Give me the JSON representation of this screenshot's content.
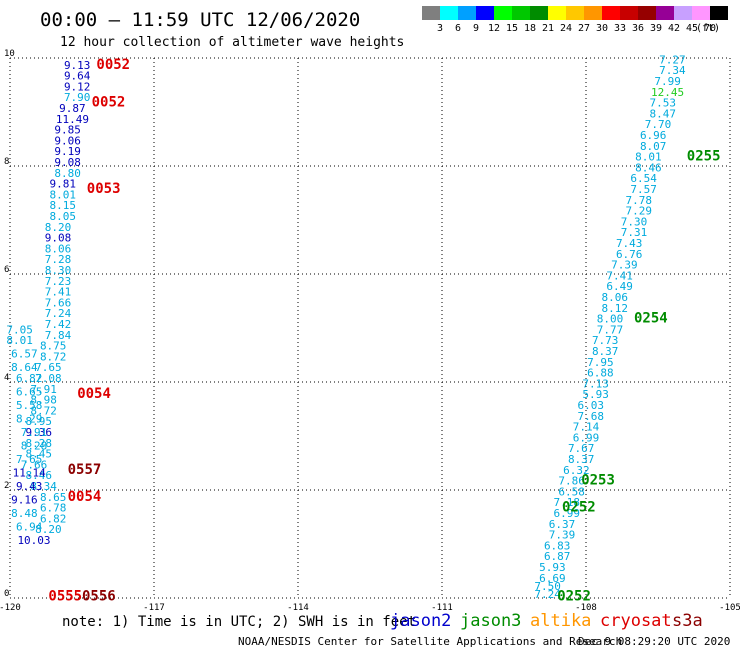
{
  "header": {
    "title": "00:00 – 11:59 UTC 12/06/2020",
    "subtitle": "12 hour collection of altimeter wave heights"
  },
  "legend": {
    "unit": "(ft)",
    "bins": [
      {
        "label": "3",
        "color": "#7f7f7f"
      },
      {
        "label": "6",
        "color": "#00ffff"
      },
      {
        "label": "9",
        "color": "#00a0ff"
      },
      {
        "label": "12",
        "color": "#0000ff"
      },
      {
        "label": "15",
        "color": "#00ff00"
      },
      {
        "label": "18",
        "color": "#00c800"
      },
      {
        "label": "21",
        "color": "#008c00"
      },
      {
        "label": "24",
        "color": "#ffff00"
      },
      {
        "label": "27",
        "color": "#ffc800"
      },
      {
        "label": "30",
        "color": "#ff9600"
      },
      {
        "label": "33",
        "color": "#ff0000"
      },
      {
        "label": "36",
        "color": "#c80000"
      },
      {
        "label": "39",
        "color": "#960000"
      },
      {
        "label": "42",
        "color": "#960096"
      },
      {
        "label": "45",
        "color": "#c8a0ff"
      },
      {
        "label": "70",
        "color": "#ff96ff"
      },
      {
        "label": "",
        "color": "#000000"
      }
    ]
  },
  "footer": {
    "note": "note:  1) Time is in UTC; 2) SWH is in feet",
    "credit": "NOAA/NESDIS Center for Satellite Applications and Research",
    "timestamp": "Dec  9 08:29:20 UTC 2020",
    "satellites": [
      {
        "name": "jason2",
        "color": "#0000cc"
      },
      {
        "name": "jason3",
        "color": "#008c00"
      },
      {
        "name": "altika",
        "color": "#ff9600"
      },
      {
        "name": "cryosat",
        "color": "#dd0000"
      },
      {
        "name": "s3a",
        "color": "#8b0000"
      }
    ]
  },
  "chart_data": {
    "type": "scatter",
    "xlim": [
      -120,
      -105
    ],
    "ylim": [
      0,
      10
    ],
    "grid": true,
    "x_ticks": [
      "-120",
      "-117",
      "-114",
      "-111",
      "-108",
      "-105"
    ],
    "y_ticks": [
      "0",
      "2",
      "4",
      "6",
      "8",
      "10"
    ],
    "colors": {
      "c3": "#00aadd",
      "c4": "#0000bb",
      "c5": "#22cc22",
      "p_red": "#dd0000",
      "p_green": "#008c00",
      "p_maroon": "#8b0000"
    },
    "points": [
      {
        "x": -118.6,
        "y": 9.8,
        "v": "9.13",
        "c": "c4"
      },
      {
        "x": -118.6,
        "y": 9.6,
        "v": "9.64",
        "c": "c4"
      },
      {
        "x": -118.6,
        "y": 9.4,
        "v": "9.12",
        "c": "c4"
      },
      {
        "x": -118.6,
        "y": 9.2,
        "v": "7.90",
        "c": "c3"
      },
      {
        "x": -118.7,
        "y": 9.0,
        "v": "9.87",
        "c": "c4"
      },
      {
        "x": -118.7,
        "y": 8.8,
        "v": "11.49",
        "c": "c4"
      },
      {
        "x": -118.8,
        "y": 8.6,
        "v": "9.85",
        "c": "c4"
      },
      {
        "x": -118.8,
        "y": 8.4,
        "v": "9.06",
        "c": "c4"
      },
      {
        "x": -118.8,
        "y": 8.2,
        "v": "9.19",
        "c": "c4"
      },
      {
        "x": -118.8,
        "y": 8.0,
        "v": "9.08",
        "c": "c4"
      },
      {
        "x": -118.8,
        "y": 7.8,
        "v": "8.80",
        "c": "c3"
      },
      {
        "x": -118.9,
        "y": 7.6,
        "v": "9.81",
        "c": "c4"
      },
      {
        "x": -118.9,
        "y": 7.4,
        "v": "8.01",
        "c": "c3"
      },
      {
        "x": -118.9,
        "y": 7.2,
        "v": "8.15",
        "c": "c3"
      },
      {
        "x": -118.9,
        "y": 7.0,
        "v": "8.05",
        "c": "c3"
      },
      {
        "x": -119.0,
        "y": 6.8,
        "v": "8.20",
        "c": "c3"
      },
      {
        "x": -119.0,
        "y": 6.6,
        "v": "9.08",
        "c": "c4"
      },
      {
        "x": -119.0,
        "y": 6.4,
        "v": "8.06",
        "c": "c3"
      },
      {
        "x": -119.0,
        "y": 6.2,
        "v": "7.28",
        "c": "c3"
      },
      {
        "x": -119.0,
        "y": 6.0,
        "v": "8.30",
        "c": "c3"
      },
      {
        "x": -119.0,
        "y": 5.8,
        "v": "7.23",
        "c": "c3"
      },
      {
        "x": -119.0,
        "y": 5.6,
        "v": "7.41",
        "c": "c3"
      },
      {
        "x": -119.0,
        "y": 5.4,
        "v": "7.66",
        "c": "c3"
      },
      {
        "x": -119.0,
        "y": 5.2,
        "v": "7.24",
        "c": "c3"
      },
      {
        "x": -119.0,
        "y": 5.0,
        "v": "7.42",
        "c": "c3"
      },
      {
        "x": -119.0,
        "y": 4.8,
        "v": "7.84",
        "c": "c3"
      },
      {
        "x": -119.1,
        "y": 4.6,
        "v": "8.75",
        "c": "c3"
      },
      {
        "x": -119.1,
        "y": 4.4,
        "v": "8.72",
        "c": "c3"
      },
      {
        "x": -119.2,
        "y": 4.2,
        "v": "7.65",
        "c": "c3"
      },
      {
        "x": -119.2,
        "y": 4.0,
        "v": "7.08",
        "c": "c3"
      },
      {
        "x": -119.3,
        "y": 3.8,
        "v": "7.91",
        "c": "c3"
      },
      {
        "x": -119.3,
        "y": 3.6,
        "v": "8.98",
        "c": "c3"
      },
      {
        "x": -119.3,
        "y": 3.4,
        "v": "8.72",
        "c": "c3"
      },
      {
        "x": -119.4,
        "y": 3.2,
        "v": "8.95",
        "c": "c3"
      },
      {
        "x": -119.4,
        "y": 3.0,
        "v": "9.36",
        "c": "c4"
      },
      {
        "x": -119.4,
        "y": 2.8,
        "v": "8.28",
        "c": "c3"
      },
      {
        "x": -119.4,
        "y": 2.6,
        "v": "8.45",
        "c": "c3"
      },
      {
        "x": -119.5,
        "y": 2.4,
        "v": "7.66",
        "c": "c3"
      },
      {
        "x": -119.4,
        "y": 2.2,
        "v": "8.46",
        "c": "c3"
      },
      {
        "x": -119.3,
        "y": 2.0,
        "v": "8.34",
        "c": "c3"
      },
      {
        "x": -119.1,
        "y": 1.8,
        "v": "8.65",
        "c": "c3"
      },
      {
        "x": -119.1,
        "y": 1.6,
        "v": "6.78",
        "c": "c3"
      },
      {
        "x": -119.1,
        "y": 1.4,
        "v": "6.82",
        "c": "c3"
      },
      {
        "x": -119.2,
        "y": 1.2,
        "v": "8.20",
        "c": "c3"
      },
      {
        "x": -119.8,
        "y": 4.9,
        "v": "7.05",
        "c": "c3"
      },
      {
        "x": -119.8,
        "y": 4.7,
        "v": "8.01",
        "c": "c3"
      },
      {
        "x": -119.7,
        "y": 4.45,
        "v": "6.57",
        "c": "c3"
      },
      {
        "x": -119.7,
        "y": 4.2,
        "v": "8.64",
        "c": "c3"
      },
      {
        "x": -119.6,
        "y": 4.0,
        "v": "6.82",
        "c": "c3"
      },
      {
        "x": -119.6,
        "y": 3.75,
        "v": "6.65",
        "c": "c3"
      },
      {
        "x": -119.6,
        "y": 3.5,
        "v": "5.58",
        "c": "c3"
      },
      {
        "x": -119.6,
        "y": 3.25,
        "v": "8.29",
        "c": "c3"
      },
      {
        "x": -119.5,
        "y": 3.0,
        "v": "7.91",
        "c": "c3"
      },
      {
        "x": -119.5,
        "y": 2.75,
        "v": "8.28",
        "c": "c3"
      },
      {
        "x": -119.6,
        "y": 2.5,
        "v": "7.65",
        "c": "c3"
      },
      {
        "x": -119.6,
        "y": 2.25,
        "v": "11.14",
        "c": "c4"
      },
      {
        "x": -119.6,
        "y": 2.0,
        "v": "9.43",
        "c": "c4"
      },
      {
        "x": -119.7,
        "y": 1.75,
        "v": "9.16",
        "c": "c4"
      },
      {
        "x": -119.7,
        "y": 1.5,
        "v": "8.48",
        "c": "c3"
      },
      {
        "x": -119.6,
        "y": 1.25,
        "v": "6.94",
        "c": "c3"
      },
      {
        "x": -119.5,
        "y": 1.0,
        "v": "10.03",
        "c": "c4"
      },
      {
        "x": -106.2,
        "y": 9.9,
        "v": "7.27",
        "c": "c3"
      },
      {
        "x": -106.2,
        "y": 9.7,
        "v": "7.34",
        "c": "c3"
      },
      {
        "x": -106.3,
        "y": 9.5,
        "v": "7.99",
        "c": "c3"
      },
      {
        "x": -106.3,
        "y": 9.3,
        "v": "12.45",
        "c": "c5"
      },
      {
        "x": -106.4,
        "y": 9.1,
        "v": "7.53",
        "c": "c3"
      },
      {
        "x": -106.4,
        "y": 8.9,
        "v": "8.47",
        "c": "c3"
      },
      {
        "x": -106.5,
        "y": 8.7,
        "v": "7.70",
        "c": "c3"
      },
      {
        "x": -106.6,
        "y": 8.5,
        "v": "6.96",
        "c": "c3"
      },
      {
        "x": -106.6,
        "y": 8.3,
        "v": "8.07",
        "c": "c3"
      },
      {
        "x": -106.7,
        "y": 8.1,
        "v": "8.01",
        "c": "c3"
      },
      {
        "x": -106.7,
        "y": 7.9,
        "v": "8.46",
        "c": "c3"
      },
      {
        "x": -106.8,
        "y": 7.7,
        "v": "6.54",
        "c": "c3"
      },
      {
        "x": -106.8,
        "y": 7.5,
        "v": "7.57",
        "c": "c3"
      },
      {
        "x": -106.9,
        "y": 7.3,
        "v": "7.78",
        "c": "c3"
      },
      {
        "x": -106.9,
        "y": 7.1,
        "v": "7.29",
        "c": "c3"
      },
      {
        "x": -107.0,
        "y": 6.9,
        "v": "7.30",
        "c": "c3"
      },
      {
        "x": -107.0,
        "y": 6.7,
        "v": "7.31",
        "c": "c3"
      },
      {
        "x": -107.1,
        "y": 6.5,
        "v": "7.43",
        "c": "c3"
      },
      {
        "x": -107.1,
        "y": 6.3,
        "v": "6.76",
        "c": "c3"
      },
      {
        "x": -107.2,
        "y": 6.1,
        "v": "7.39",
        "c": "c3"
      },
      {
        "x": -107.3,
        "y": 5.9,
        "v": "7.41",
        "c": "c3"
      },
      {
        "x": -107.3,
        "y": 5.7,
        "v": "6.49",
        "c": "c3"
      },
      {
        "x": -107.4,
        "y": 5.5,
        "v": "8.06",
        "c": "c3"
      },
      {
        "x": -107.4,
        "y": 5.3,
        "v": "8.12",
        "c": "c3"
      },
      {
        "x": -107.5,
        "y": 5.1,
        "v": "8.00",
        "c": "c3"
      },
      {
        "x": -107.5,
        "y": 4.9,
        "v": "7.77",
        "c": "c3"
      },
      {
        "x": -107.6,
        "y": 4.7,
        "v": "7.73",
        "c": "c3"
      },
      {
        "x": -107.6,
        "y": 4.5,
        "v": "8.37",
        "c": "c3"
      },
      {
        "x": -107.7,
        "y": 4.3,
        "v": "7.95",
        "c": "c3"
      },
      {
        "x": -107.7,
        "y": 4.1,
        "v": "6.88",
        "c": "c3"
      },
      {
        "x": -107.8,
        "y": 3.9,
        "v": "7.13",
        "c": "c3"
      },
      {
        "x": -107.8,
        "y": 3.7,
        "v": "5.93",
        "c": "c3"
      },
      {
        "x": -107.9,
        "y": 3.5,
        "v": "6.03",
        "c": "c3"
      },
      {
        "x": -107.9,
        "y": 3.3,
        "v": "7.68",
        "c": "c3"
      },
      {
        "x": -108.0,
        "y": 3.1,
        "v": "7.14",
        "c": "c3"
      },
      {
        "x": -108.0,
        "y": 2.9,
        "v": "6.99",
        "c": "c3"
      },
      {
        "x": -108.1,
        "y": 2.7,
        "v": "7.67",
        "c": "c3"
      },
      {
        "x": -108.1,
        "y": 2.5,
        "v": "8.37",
        "c": "c3"
      },
      {
        "x": -108.2,
        "y": 2.3,
        "v": "6.32",
        "c": "c3"
      },
      {
        "x": -108.3,
        "y": 2.1,
        "v": "7.86",
        "c": "c3"
      },
      {
        "x": -108.3,
        "y": 1.9,
        "v": "6.58",
        "c": "c3"
      },
      {
        "x": -108.4,
        "y": 1.7,
        "v": "7.18",
        "c": "c3"
      },
      {
        "x": -108.4,
        "y": 1.5,
        "v": "6.99",
        "c": "c3"
      },
      {
        "x": -108.5,
        "y": 1.3,
        "v": "6.37",
        "c": "c3"
      },
      {
        "x": -108.5,
        "y": 1.1,
        "v": "7.39",
        "c": "c3"
      },
      {
        "x": -108.6,
        "y": 0.9,
        "v": "6.83",
        "c": "c3"
      },
      {
        "x": -108.6,
        "y": 0.7,
        "v": "6.87",
        "c": "c3"
      },
      {
        "x": -108.7,
        "y": 0.5,
        "v": "5.93",
        "c": "c3"
      },
      {
        "x": -108.7,
        "y": 0.3,
        "v": "6.69",
        "c": "c3"
      },
      {
        "x": -108.8,
        "y": 0.15,
        "v": "7.50",
        "c": "c3"
      },
      {
        "x": -108.8,
        "y": 0.0,
        "v": "7.24",
        "c": "c3"
      }
    ],
    "passes": [
      {
        "x": -118.2,
        "y": 9.8,
        "v": "0052",
        "c": "p_red"
      },
      {
        "x": -118.3,
        "y": 9.1,
        "v": "0052",
        "c": "p_red"
      },
      {
        "x": -118.4,
        "y": 7.5,
        "v": "0053",
        "c": "p_red"
      },
      {
        "x": -118.6,
        "y": 3.7,
        "v": "0054",
        "c": "p_red"
      },
      {
        "x": -118.8,
        "y": 1.8,
        "v": "0054",
        "c": "p_red"
      },
      {
        "x": -118.8,
        "y": 2.3,
        "v": "0557",
        "c": "p_maroon"
      },
      {
        "x": -119.2,
        "y": -0.05,
        "v": "0555",
        "c": "p_red"
      },
      {
        "x": -118.5,
        "y": -0.05,
        "v": "0556",
        "c": "p_maroon"
      },
      {
        "x": -105.9,
        "y": 8.1,
        "v": "0255",
        "c": "p_green"
      },
      {
        "x": -107.0,
        "y": 5.1,
        "v": "0254",
        "c": "p_green"
      },
      {
        "x": -108.1,
        "y": 2.1,
        "v": "0253",
        "c": "p_green"
      },
      {
        "x": -108.5,
        "y": 1.6,
        "v": "0252",
        "c": "p_green"
      },
      {
        "x": -108.6,
        "y": -0.05,
        "v": "0252",
        "c": "p_green"
      }
    ]
  }
}
